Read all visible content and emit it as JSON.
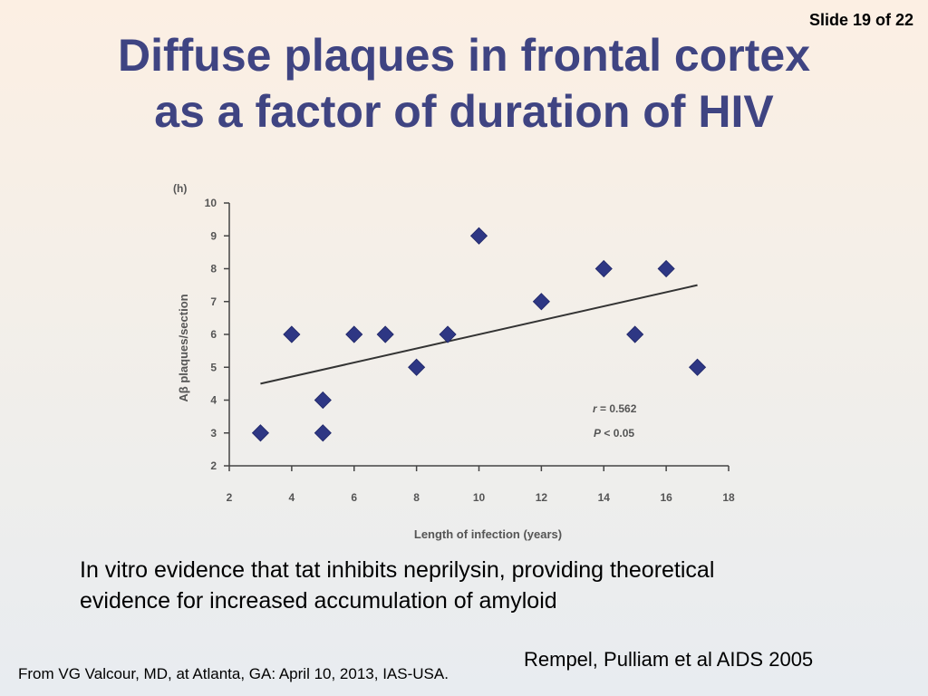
{
  "slide_number": "Slide 19 of 22",
  "title": {
    "line1": "Diffuse plaques in frontal cortex",
    "line2": "as a factor of duration of HIV"
  },
  "body_text": {
    "line1": "In vitro evidence that tat inhibits neprilysin, providing theoretical",
    "line2": "evidence for increased accumulation of amyloid"
  },
  "citation": "Rempel, Pulliam et al AIDS 2005",
  "source": "From VG Valcour, MD, at Atlanta, GA: April 10, 2013, IAS-USA.",
  "chart_data": {
    "type": "scatter",
    "panel_label": "(h)",
    "xlabel": "Length of infection (years)",
    "ylabel": "Aβ plaques/section",
    "xlim": [
      2,
      18
    ],
    "ylim": [
      2,
      10
    ],
    "xticks": [
      2,
      4,
      6,
      8,
      10,
      12,
      14,
      16,
      18
    ],
    "yticks": [
      2,
      3,
      4,
      5,
      6,
      7,
      8,
      9,
      10
    ],
    "points": [
      {
        "x": 3,
        "y": 3
      },
      {
        "x": 4,
        "y": 6
      },
      {
        "x": 5,
        "y": 3
      },
      {
        "x": 5,
        "y": 4
      },
      {
        "x": 6,
        "y": 6
      },
      {
        "x": 7,
        "y": 6
      },
      {
        "x": 8,
        "y": 5
      },
      {
        "x": 9,
        "y": 6
      },
      {
        "x": 10,
        "y": 9
      },
      {
        "x": 12,
        "y": 7
      },
      {
        "x": 14,
        "y": 8
      },
      {
        "x": 15,
        "y": 6
      },
      {
        "x": 16,
        "y": 8
      },
      {
        "x": 17,
        "y": 5
      }
    ],
    "trendline": {
      "x1": 3,
      "y1": 4.5,
      "x2": 17,
      "y2": 7.5
    },
    "stats": {
      "r_label": "r",
      "r_text": " = 0.562",
      "p_label": "P",
      "p_text": " < 0.05"
    },
    "grid": false,
    "marker_color": "#2e3784"
  }
}
